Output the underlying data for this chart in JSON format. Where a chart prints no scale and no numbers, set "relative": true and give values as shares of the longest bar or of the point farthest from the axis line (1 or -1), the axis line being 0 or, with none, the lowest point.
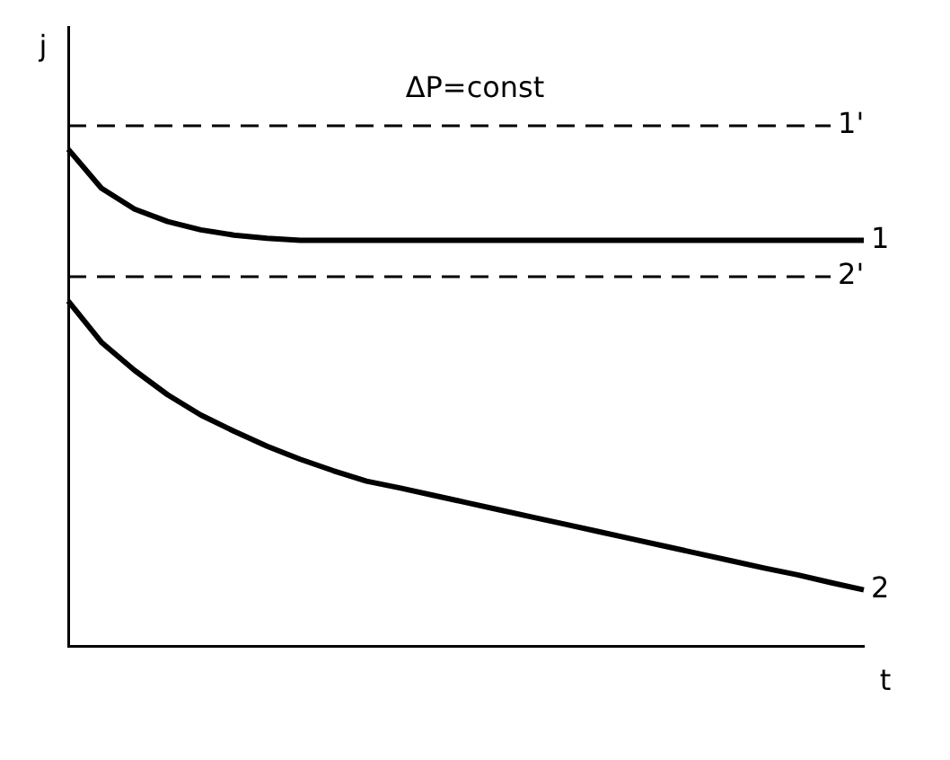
{
  "chart_data": {
    "type": "line",
    "relative": true,
    "xlabel": "t",
    "ylabel": "j",
    "annotations": [
      "ΔP=const"
    ],
    "grid": false,
    "legend": false,
    "marker": "none",
    "categories": [
      null,
      null,
      null,
      null,
      null,
      null,
      null,
      null,
      null,
      null,
      null,
      null,
      null,
      null,
      null,
      null,
      null,
      null,
      null,
      null,
      null,
      null,
      null,
      null,
      null
    ],
    "series": [
      {
        "name": "1'",
        "color": "#000000",
        "line_style": "dashed",
        "values": [
          1,
          1,
          1,
          1,
          1,
          1,
          1,
          1,
          1,
          1,
          1,
          1,
          1,
          1,
          1,
          1,
          1,
          1,
          1,
          1,
          1,
          1,
          1,
          1,
          null
        ]
      },
      {
        "name": "1",
        "color": "#000000",
        "line_style": "solid",
        "values": [
          0.955,
          0.88,
          0.84,
          0.816,
          0.8,
          0.79,
          0.784,
          0.78,
          0.78,
          0.78,
          0.78,
          0.78,
          0.78,
          0.78,
          0.78,
          0.78,
          0.78,
          0.78,
          0.78,
          0.78,
          0.78,
          0.78,
          0.78,
          0.78,
          0.78
        ]
      },
      {
        "name": "2'",
        "color": "#000000",
        "line_style": "dashed",
        "values": [
          0.71,
          0.71,
          0.71,
          0.71,
          0.71,
          0.71,
          0.71,
          0.71,
          0.71,
          0.71,
          0.71,
          0.71,
          0.71,
          0.71,
          0.71,
          0.71,
          0.71,
          0.71,
          0.71,
          0.71,
          0.71,
          0.71,
          0.71,
          0.71,
          null
        ]
      },
      {
        "name": "2",
        "color": "#000000",
        "line_style": "solid",
        "values": [
          0.663,
          0.584,
          0.53,
          0.483,
          0.444,
          0.413,
          0.384,
          0.359,
          0.337,
          0.317,
          0.304,
          0.29,
          0.276,
          0.262,
          0.248,
          0.234,
          0.22,
          0.206,
          0.192,
          0.178,
          0.164,
          0.15,
          0.137,
          0.122,
          0.108
        ]
      }
    ]
  }
}
